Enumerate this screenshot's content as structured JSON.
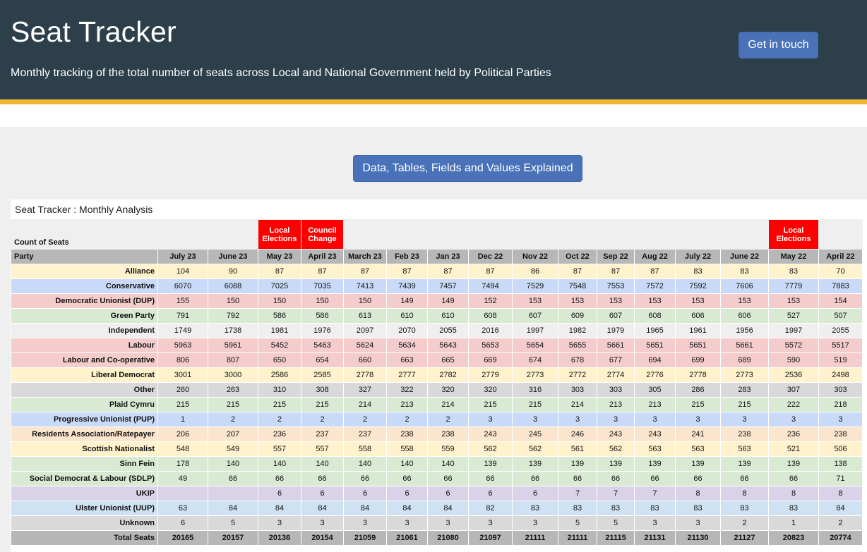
{
  "header": {
    "title": "Seat Tracker",
    "subtitle": "Monthly tracking of the total number of seats across Local and National Government held by Political Parties",
    "contact_button": "Get in touch"
  },
  "explained_button": "Data, Tables, Fields and Values Explained",
  "panel_title": "Seat Tracker : Monthly Analysis",
  "table": {
    "count_label": "Count of Seats",
    "party_header": "Party",
    "events": [
      {
        "column": "May 23",
        "label": "Local Elections"
      },
      {
        "column": "April 23",
        "label": "Council Change"
      },
      {
        "column": "May 22",
        "label": "Local Elections"
      }
    ],
    "columns": [
      "July 23",
      "June 23",
      "May 23",
      "April 23",
      "March 23",
      "Feb 23",
      "Jan 23",
      "Dec 22",
      "Nov 22",
      "Oct 22",
      "Sep 22",
      "Aug 22",
      "July 22",
      "June 22",
      "May 22",
      "April 22"
    ],
    "rows": [
      {
        "party": "Alliance",
        "color": "#fff2cc",
        "values": [
          "104",
          "90",
          "87",
          "87",
          "87",
          "87",
          "87",
          "87",
          "86",
          "87",
          "87",
          "87",
          "83",
          "83",
          "83",
          "70"
        ]
      },
      {
        "party": "Conservative",
        "color": "#c9daf8",
        "values": [
          "6070",
          "6088",
          "7025",
          "7035",
          "7413",
          "7439",
          "7457",
          "7494",
          "7529",
          "7548",
          "7553",
          "7572",
          "7592",
          "7606",
          "7779",
          "7883"
        ]
      },
      {
        "party": "Democratic Unionist (DUP)",
        "color": "#f4cccc",
        "values": [
          "155",
          "150",
          "150",
          "150",
          "150",
          "149",
          "149",
          "152",
          "153",
          "153",
          "153",
          "153",
          "153",
          "153",
          "153",
          "154"
        ]
      },
      {
        "party": "Green Party",
        "color": "#d9ead3",
        "values": [
          "791",
          "792",
          "586",
          "586",
          "613",
          "610",
          "610",
          "608",
          "607",
          "609",
          "607",
          "608",
          "606",
          "606",
          "527",
          "507"
        ]
      },
      {
        "party": "Independent",
        "color": "#efefef",
        "values": [
          "1749",
          "1738",
          "1981",
          "1976",
          "2097",
          "2070",
          "2055",
          "2016",
          "1997",
          "1982",
          "1979",
          "1965",
          "1961",
          "1956",
          "1997",
          "2055"
        ]
      },
      {
        "party": "Labour",
        "color": "#f4cccc",
        "values": [
          "5963",
          "5961",
          "5452",
          "5463",
          "5624",
          "5634",
          "5643",
          "5653",
          "5654",
          "5655",
          "5661",
          "5651",
          "5651",
          "5661",
          "5572",
          "5517"
        ]
      },
      {
        "party": "Labour and Co-operative",
        "color": "#f4cccc",
        "values": [
          "806",
          "807",
          "650",
          "654",
          "660",
          "663",
          "665",
          "669",
          "674",
          "678",
          "677",
          "694",
          "699",
          "689",
          "590",
          "519"
        ]
      },
      {
        "party": "Liberal Democrat",
        "color": "#fff2cc",
        "values": [
          "3001",
          "3000",
          "2586",
          "2585",
          "2778",
          "2777",
          "2782",
          "2779",
          "2773",
          "2772",
          "2774",
          "2776",
          "2778",
          "2773",
          "2536",
          "2498"
        ]
      },
      {
        "party": "Other",
        "color": "#d9d9d9",
        "values": [
          "260",
          "263",
          "310",
          "308",
          "327",
          "322",
          "320",
          "320",
          "316",
          "303",
          "303",
          "305",
          "286",
          "283",
          "307",
          "303"
        ]
      },
      {
        "party": "Plaid Cymru",
        "color": "#d9ead3",
        "values": [
          "215",
          "215",
          "215",
          "215",
          "214",
          "213",
          "214",
          "215",
          "215",
          "214",
          "213",
          "213",
          "215",
          "215",
          "222",
          "218"
        ]
      },
      {
        "party": "Progressive Unionist (PUP)",
        "color": "#c9daf8",
        "values": [
          "1",
          "2",
          "2",
          "2",
          "2",
          "2",
          "2",
          "3",
          "3",
          "3",
          "3",
          "3",
          "3",
          "3",
          "3",
          "3"
        ]
      },
      {
        "party": "Residents Association/Ratepayer",
        "color": "#fce5cd",
        "values": [
          "206",
          "207",
          "236",
          "237",
          "237",
          "238",
          "238",
          "243",
          "245",
          "246",
          "243",
          "243",
          "241",
          "238",
          "236",
          "238"
        ]
      },
      {
        "party": "Scottish Nationalist",
        "color": "#fff2cc",
        "values": [
          "548",
          "549",
          "557",
          "557",
          "558",
          "558",
          "559",
          "562",
          "562",
          "561",
          "562",
          "563",
          "563",
          "563",
          "521",
          "506"
        ]
      },
      {
        "party": "Sinn Fein",
        "color": "#d9ead3",
        "values": [
          "178",
          "140",
          "140",
          "140",
          "140",
          "140",
          "140",
          "139",
          "139",
          "139",
          "139",
          "139",
          "139",
          "139",
          "139",
          "138"
        ]
      },
      {
        "party": "Social Democrat & Labour (SDLP)",
        "color": "#d9ead3",
        "values": [
          "49",
          "66",
          "66",
          "66",
          "66",
          "66",
          "66",
          "66",
          "66",
          "66",
          "66",
          "66",
          "66",
          "66",
          "66",
          "71"
        ]
      },
      {
        "party": "UKIP",
        "color": "#d9d2e9",
        "values": [
          "",
          "",
          "6",
          "6",
          "6",
          "6",
          "6",
          "6",
          "6",
          "7",
          "7",
          "7",
          "8",
          "8",
          "8",
          "8"
        ]
      },
      {
        "party": "Ulster Unionist (UUP)",
        "color": "#cfe2f3",
        "values": [
          "63",
          "84",
          "84",
          "84",
          "84",
          "84",
          "84",
          "82",
          "83",
          "83",
          "83",
          "83",
          "83",
          "83",
          "83",
          "84"
        ]
      },
      {
        "party": "Unknown",
        "color": "#d9d9d9",
        "values": [
          "6",
          "5",
          "3",
          "3",
          "3",
          "3",
          "3",
          "3",
          "3",
          "5",
          "5",
          "3",
          "3",
          "2",
          "1",
          "2"
        ]
      }
    ],
    "total": {
      "label": "Total Seats",
      "values": [
        "20165",
        "20157",
        "20136",
        "20154",
        "21059",
        "21061",
        "21080",
        "21097",
        "21111",
        "21111",
        "21115",
        "21131",
        "21130",
        "21127",
        "20823",
        "20774"
      ]
    }
  }
}
